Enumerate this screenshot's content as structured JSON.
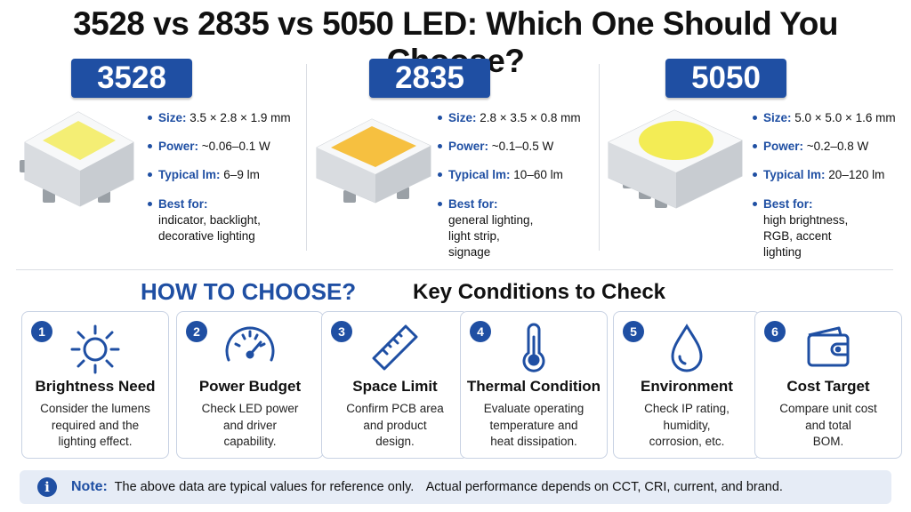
{
  "title": "3528 vs 2835 vs 5050 LED: Which One Should You Choose?",
  "leds": [
    {
      "name": "3528",
      "size_label": "Size:",
      "size": "3.5 × 2.8 × 1.9 mm",
      "power_label": "Power:",
      "power": "~0.06–0.1 W",
      "lm_label": "Typical lm:",
      "lm": "6–9 lm",
      "best_label": "Best for:",
      "best": [
        "indicator, backlight,",
        "decorative lighting"
      ]
    },
    {
      "name": "2835",
      "size_label": "Size:",
      "size": "2.8 × 3.5 × 0.8 mm",
      "power_label": "Power:",
      "power": "~0.1–0.5 W",
      "lm_label": "Typical lm:",
      "lm": "10–60 lm",
      "best_label": "Best for:",
      "best": [
        "general lighting,",
        "light strip,",
        "signage"
      ]
    },
    {
      "name": "5050",
      "size_label": "Size:",
      "size": "5.0 × 5.0 × 1.6 mm",
      "power_label": "Power:",
      "power": "~0.2–0.8 W",
      "lm_label": "Typical lm:",
      "lm": "20–120 lm",
      "best_label": "Best for:",
      "best": [
        "high brightness,",
        "RGB, accent",
        "lighting"
      ]
    }
  ],
  "how_to_choose": "HOW TO CHOOSE?",
  "key_conditions": "Key Conditions to Check",
  "cards": [
    {
      "num": "1",
      "icon": "sun-icon",
      "title": "Brightness Need",
      "desc": [
        "Consider the lumens",
        "required and the",
        "lighting effect."
      ]
    },
    {
      "num": "2",
      "icon": "gauge-icon",
      "title": "Power Budget",
      "desc": [
        "Check LED power",
        "and driver",
        "capability."
      ]
    },
    {
      "num": "3",
      "icon": "ruler-icon",
      "title": "Space Limit",
      "desc": [
        "Confirm PCB area",
        "and product",
        "design."
      ]
    },
    {
      "num": "4",
      "icon": "thermometer-icon",
      "title": "Thermal Condition",
      "desc": [
        "Evaluate operating",
        "temperature and",
        "heat dissipation."
      ]
    },
    {
      "num": "5",
      "icon": "water-drop-icon",
      "title": "Environment",
      "desc": [
        "Check IP rating,",
        "humidity,",
        "corrosion, etc."
      ]
    },
    {
      "num": "6",
      "icon": "wallet-icon",
      "title": "Cost Target",
      "desc": [
        "Compare unit cost",
        "and total",
        "BOM."
      ]
    }
  ],
  "note": {
    "label": "Note:",
    "text1": "The above data are typical values for reference only.",
    "text2": "Actual performance depends on CCT, CRI, current, and brand."
  },
  "colors": {
    "accent": "#1f4fa3",
    "chip_3528": "#f4ee74",
    "chip_2835": "#f6c040",
    "chip_5050": "#f3ec55"
  }
}
